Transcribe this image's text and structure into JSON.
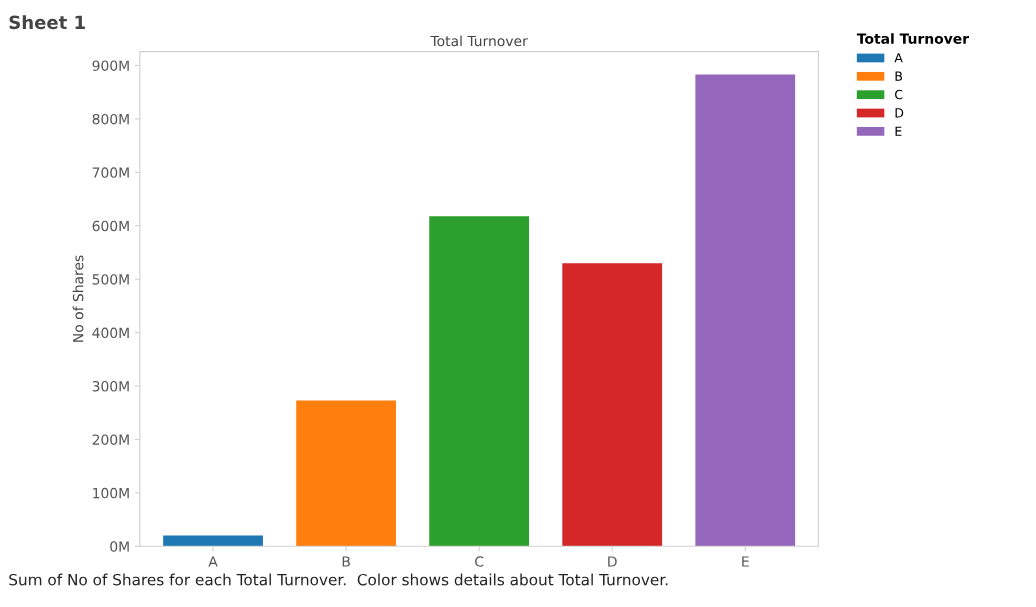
{
  "chart_data": {
    "type": "bar",
    "title": "Sheet 1",
    "subtitle": "Total Turnover",
    "ylabel": "No of Shares",
    "legend_title": "Total Turnover",
    "categories": [
      "A",
      "B",
      "C",
      "D",
      "E"
    ],
    "series": [
      {
        "name": "A",
        "color": "#1f77b4",
        "values": [
          20000000,
          null,
          null,
          null,
          null
        ]
      },
      {
        "name": "B",
        "color": "#ff7f0e",
        "values": [
          null,
          273000000,
          null,
          null,
          null
        ]
      },
      {
        "name": "C",
        "color": "#2ca02c",
        "values": [
          null,
          null,
          618000000,
          null,
          null
        ]
      },
      {
        "name": "D",
        "color": "#d62728",
        "values": [
          null,
          null,
          null,
          530000000,
          null
        ]
      },
      {
        "name": "E",
        "color": "#9467bd",
        "values": [
          null,
          null,
          null,
          null,
          883000000
        ]
      }
    ],
    "ylim": [
      0,
      926000000
    ],
    "yticks": [
      {
        "value": 0,
        "label": "0M"
      },
      {
        "value": 100000000,
        "label": "100M"
      },
      {
        "value": 200000000,
        "label": "200M"
      },
      {
        "value": 300000000,
        "label": "300M"
      },
      {
        "value": 400000000,
        "label": "400M"
      },
      {
        "value": 500000000,
        "label": "500M"
      },
      {
        "value": 600000000,
        "label": "600M"
      },
      {
        "value": 700000000,
        "label": "700M"
      },
      {
        "value": 800000000,
        "label": "800M"
      },
      {
        "value": 900000000,
        "label": "900M"
      }
    ],
    "legend": "top right",
    "grid": false,
    "annotations": [
      "Sum of No of Shares for each Total Turnover.  Color shows details about Total Turnover."
    ]
  }
}
